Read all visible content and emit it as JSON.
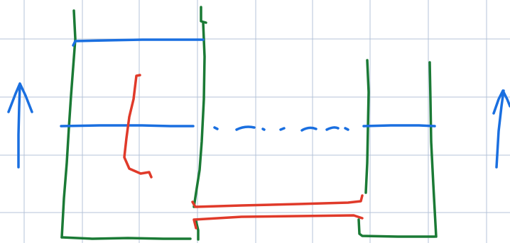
{
  "colors": {
    "background": "#ffffff",
    "grid": "#b4c3d8",
    "green": "#1a7a35",
    "blue": "#1a6fe0",
    "red": "#e03a2a"
  },
  "strokes": {
    "green": [
      "left-box-left-wall",
      "left-box-right-wall",
      "left-box-bottom",
      "right-box-left-wall",
      "right-box-right-wall",
      "right-box-bottom",
      "right-box-notch"
    ],
    "blue": [
      "top-level-line",
      "left-level-line",
      "right-level-line",
      "dashed-continuation",
      "left-up-arrow",
      "right-up-arrow"
    ],
    "red": [
      "hook-curve",
      "upper-red-bar",
      "lower-red-bar"
    ]
  }
}
